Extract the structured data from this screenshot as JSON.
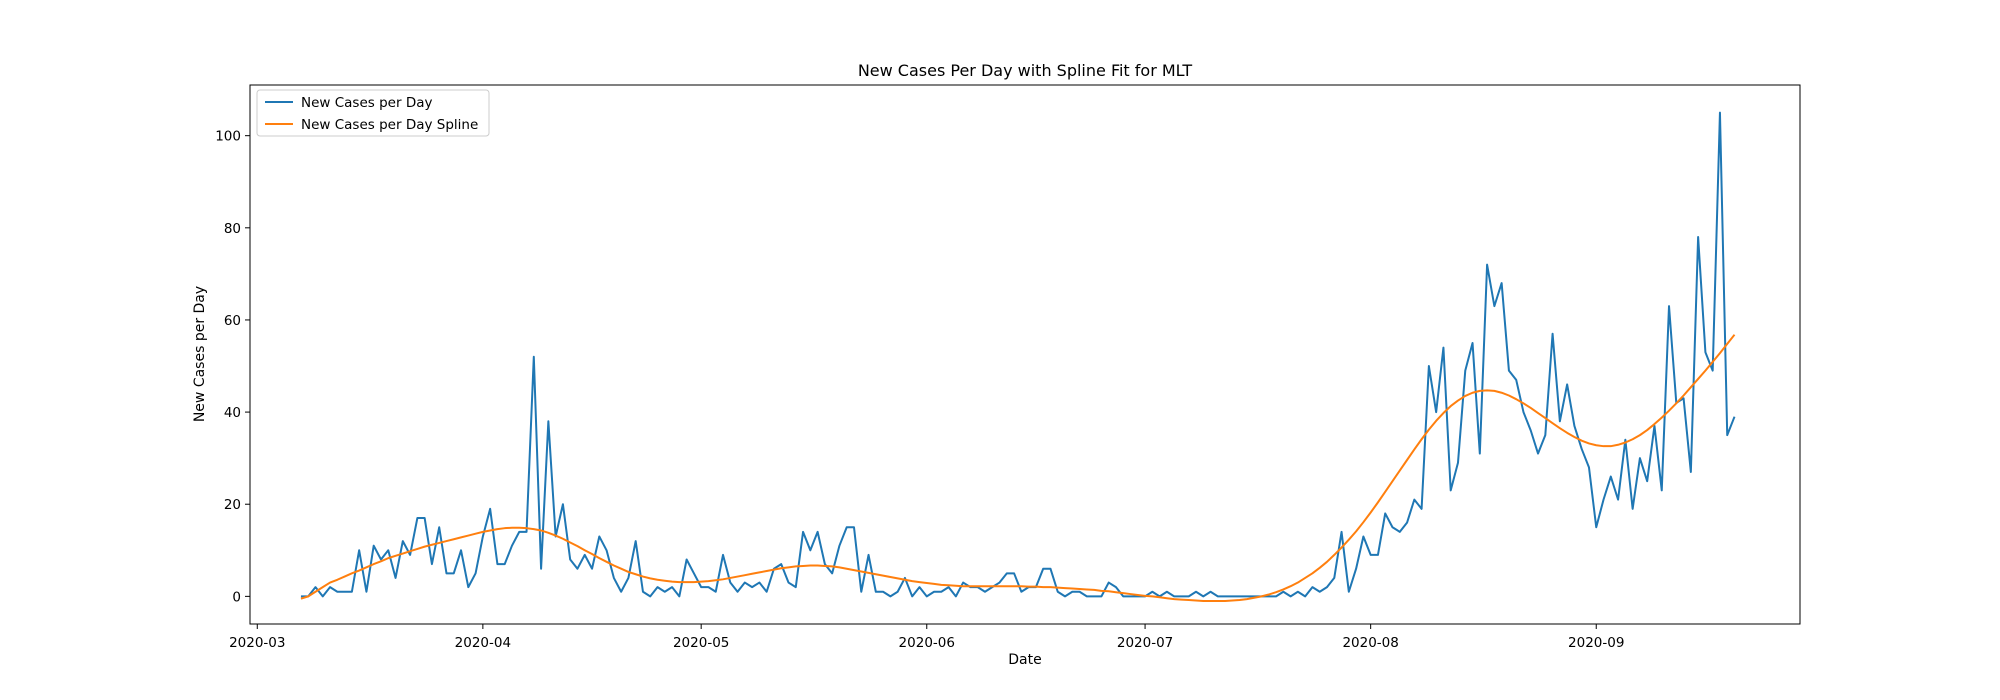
{
  "chart_data": {
    "type": "line",
    "title": "New Cases Per Day with Spline Fit for MLT",
    "xlabel": "Date",
    "ylabel": "New Cases per Day",
    "x_start": "2020-03-07",
    "xlim": [
      "2020-02-29",
      "2020-09-29"
    ],
    "ylim": [
      -6,
      111
    ],
    "x_ticks": [
      "2020-03",
      "2020-04",
      "2020-05",
      "2020-06",
      "2020-07",
      "2020-08",
      "2020-09"
    ],
    "y_ticks": [
      0,
      20,
      40,
      60,
      80,
      100
    ],
    "grid": false,
    "legend_position": "upper-left",
    "series": [
      {
        "name": "New Cases per Day",
        "color": "#1f77b4",
        "values": [
          0,
          0,
          2,
          0,
          2,
          1,
          1,
          1,
          10,
          1,
          11,
          8,
          10,
          4,
          12,
          9,
          17,
          17,
          7,
          15,
          5,
          5,
          10,
          2,
          5,
          13,
          19,
          7,
          7,
          11,
          14,
          14,
          52,
          6,
          38,
          13,
          20,
          8,
          6,
          9,
          6,
          13,
          10,
          4,
          1,
          4,
          12,
          1,
          0,
          2,
          1,
          2,
          0,
          8,
          5,
          2,
          2,
          1,
          9,
          3,
          1,
          3,
          2,
          3,
          1,
          6,
          7,
          3,
          2,
          14,
          10,
          14,
          7,
          5,
          11,
          15,
          15,
          1,
          9,
          1,
          1,
          0,
          1,
          4,
          0,
          2,
          0,
          1,
          1,
          2,
          0,
          3,
          2,
          2,
          1,
          2,
          3,
          5,
          5,
          1,
          2,
          2,
          6,
          6,
          1,
          0,
          1,
          1,
          0,
          0,
          0,
          3,
          2,
          0,
          0,
          0,
          0,
          1,
          0,
          1,
          0,
          0,
          0,
          1,
          0,
          1,
          0,
          0,
          0,
          0,
          0,
          0,
          0,
          0,
          0,
          1,
          0,
          1,
          0,
          2,
          1,
          2,
          4,
          14,
          1,
          6,
          13,
          9,
          9,
          18,
          15,
          14,
          16,
          21,
          19,
          50,
          40,
          54,
          23,
          29,
          49,
          55,
          31,
          72,
          63,
          68,
          49,
          47,
          40,
          36,
          31,
          35,
          57,
          38,
          46,
          37,
          32,
          28,
          15,
          21,
          26,
          21,
          34,
          19,
          30,
          25,
          37,
          23,
          63,
          42,
          43,
          27,
          78,
          53,
          49,
          105,
          35,
          39
        ]
      },
      {
        "name": "New Cases per Day Spline",
        "color": "#ff7f0e",
        "values": [
          -0.5,
          0,
          1,
          2,
          3,
          3.6,
          4.3,
          5,
          5.6,
          6.3,
          7,
          7.6,
          8.3,
          8.8,
          9.3,
          9.8,
          10.3,
          10.8,
          11.2,
          11.6,
          12,
          12.4,
          12.8,
          13.2,
          13.6,
          14,
          14.3,
          14.6,
          14.8,
          14.9,
          14.9,
          14.8,
          14.6,
          14.3,
          13.8,
          13.2,
          12.5,
          11.7,
          10.9,
          10,
          9.2,
          8.3,
          7.5,
          6.7,
          6,
          5.3,
          4.8,
          4.3,
          3.9,
          3.6,
          3.4,
          3.2,
          3.1,
          3.1,
          3.1,
          3.2,
          3.3,
          3.5,
          3.7,
          4,
          4.3,
          4.6,
          4.9,
          5.2,
          5.5,
          5.8,
          6.1,
          6.3,
          6.5,
          6.6,
          6.7,
          6.7,
          6.6,
          6.5,
          6.3,
          6,
          5.7,
          5.4,
          5.1,
          4.8,
          4.5,
          4.2,
          3.9,
          3.6,
          3.3,
          3.1,
          2.9,
          2.7,
          2.5,
          2.4,
          2.3,
          2.2,
          2.2,
          2.2,
          2.2,
          2.2,
          2.2,
          2.2,
          2.2,
          2.2,
          2.1,
          2.1,
          2,
          2,
          1.9,
          1.8,
          1.7,
          1.6,
          1.5,
          1.4,
          1.2,
          1.1,
          0.9,
          0.7,
          0.5,
          0.3,
          0.1,
          0,
          -0.2,
          -0.4,
          -0.6,
          -0.7,
          -0.8,
          -0.9,
          -1,
          -1,
          -1,
          -1,
          -0.9,
          -0.8,
          -0.6,
          -0.3,
          0,
          0.4,
          0.9,
          1.5,
          2.2,
          3,
          4,
          5,
          6.2,
          7.5,
          9,
          10.6,
          12.3,
          14.1,
          16.1,
          18.2,
          20.4,
          22.7,
          25,
          27.3,
          29.6,
          31.9,
          34.1,
          36.2,
          38.1,
          39.8,
          41.3,
          42.5,
          43.5,
          44.2,
          44.6,
          44.7,
          44.6,
          44.2,
          43.6,
          42.8,
          41.9,
          40.9,
          39.8,
          38.7,
          37.6,
          36.5,
          35.5,
          34.6,
          33.8,
          33.2,
          32.8,
          32.6,
          32.6,
          32.9,
          33.4,
          34.1,
          35,
          36.1,
          37.4,
          38.8,
          40.3,
          41.9,
          43.6,
          45.4,
          47.2,
          49,
          50.9,
          52.8,
          54.8,
          56.8
        ]
      }
    ]
  }
}
